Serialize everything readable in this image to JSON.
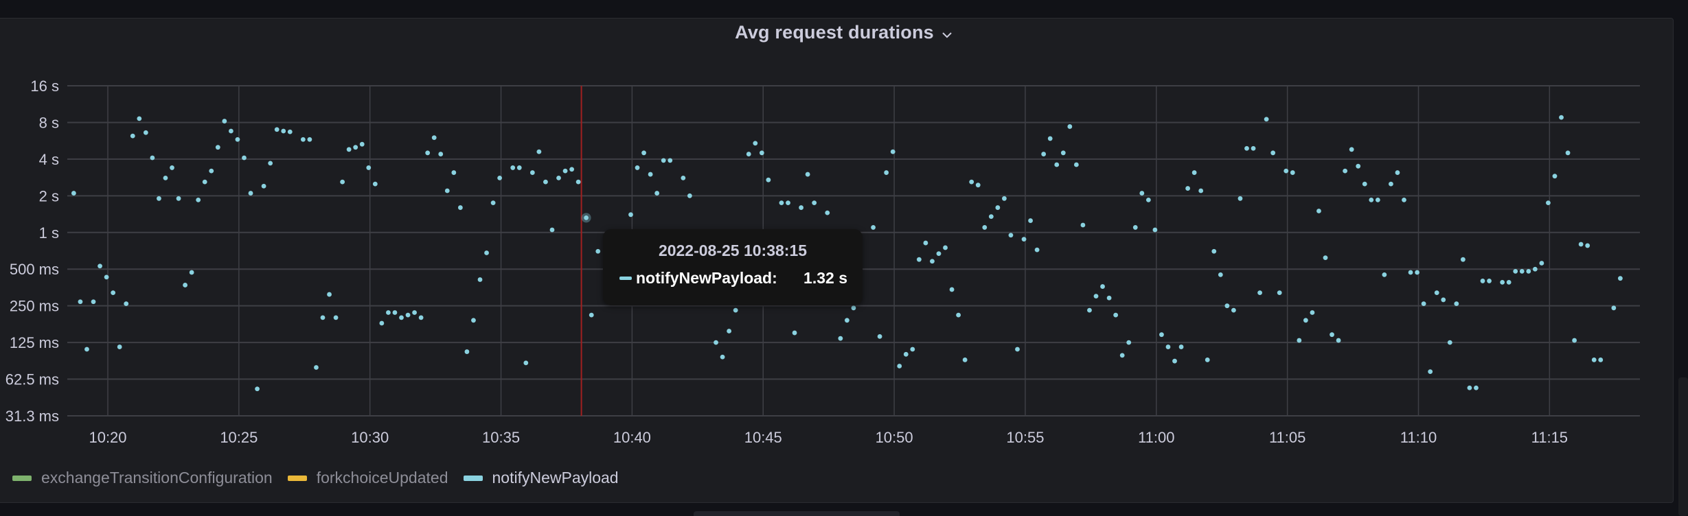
{
  "panel": {
    "title": "Avg request durations",
    "menu_icon": "chevron-down-icon"
  },
  "tooltip": {
    "time": "2022-08-25 10:38:15",
    "series_name": "notifyNewPayload:",
    "value": "1.32 s",
    "color": "#8ad2e0"
  },
  "legend": [
    {
      "label": "exchangeTransitionConfiguration",
      "color": "#7eb26d"
    },
    {
      "label": "forkchoiceUpdated",
      "color": "#eab839"
    },
    {
      "label": "notifyNewPayload",
      "color": "#8ad2e0"
    }
  ],
  "colors": {
    "background": "#111217",
    "panel": "#1c1d21",
    "grid": "#3e3f45",
    "point": "#8ad2e0",
    "cursor": "#a02020",
    "text": "#ccccdc"
  },
  "chart_data": {
    "type": "scatter",
    "title": "Avg request durations",
    "xlabel": "",
    "ylabel": "",
    "y_scale": "log2",
    "ylim_seconds": [
      0.03125,
      16
    ],
    "y_ticks": [
      "16 s",
      "8 s",
      "4 s",
      "2 s",
      "1 s",
      "500 ms",
      "250 ms",
      "125 ms",
      "62.5 ms",
      "31.3 ms"
    ],
    "x_ticks": [
      "10:20",
      "10:25",
      "10:30",
      "10:35",
      "10:40",
      "10:45",
      "10:50",
      "10:55",
      "11:00",
      "11:05",
      "11:10",
      "11:15"
    ],
    "x_range": [
      "10:18:27",
      "11:18:27"
    ],
    "grid": true,
    "legend_position": "bottom",
    "cursor_time": "10:38:15",
    "series": [
      {
        "name": "notifyNewPayload",
        "color": "#8ad2e0",
        "points_min_since_1020_and_seconds": [
          [
            -1.55,
            3.6
          ],
          [
            -1.3,
            2.1
          ],
          [
            -1.05,
            0.27
          ],
          [
            -0.8,
            0.11
          ],
          [
            -0.55,
            0.27
          ],
          [
            -0.3,
            0.53
          ],
          [
            -0.05,
            0.43
          ],
          [
            0.2,
            0.32
          ],
          [
            0.45,
            0.115
          ],
          [
            0.7,
            0.26
          ],
          [
            0.95,
            6.2
          ],
          [
            1.2,
            8.6
          ],
          [
            1.45,
            6.6
          ],
          [
            1.7,
            4.1
          ],
          [
            1.95,
            1.9
          ],
          [
            2.2,
            2.8
          ],
          [
            2.45,
            3.4
          ],
          [
            2.7,
            1.9
          ],
          [
            2.95,
            0.37
          ],
          [
            3.2,
            0.47
          ],
          [
            3.45,
            1.85
          ],
          [
            3.7,
            2.6
          ],
          [
            3.95,
            3.2
          ],
          [
            4.2,
            5.0
          ],
          [
            4.45,
            8.2
          ],
          [
            4.7,
            6.8
          ],
          [
            4.95,
            5.8
          ],
          [
            5.2,
            4.1
          ],
          [
            5.45,
            2.1
          ],
          [
            5.7,
            0.052
          ],
          [
            5.95,
            2.4
          ],
          [
            6.2,
            3.7
          ],
          [
            6.45,
            7.0
          ],
          [
            6.7,
            6.8
          ],
          [
            6.95,
            6.7
          ],
          [
            7.45,
            5.8
          ],
          [
            7.7,
            5.8
          ],
          [
            7.95,
            0.078
          ],
          [
            8.2,
            0.2
          ],
          [
            8.45,
            0.31
          ],
          [
            8.7,
            0.2
          ],
          [
            8.95,
            2.6
          ],
          [
            9.2,
            4.8
          ],
          [
            9.45,
            5.0
          ],
          [
            9.7,
            5.3
          ],
          [
            9.95,
            3.4
          ],
          [
            10.2,
            2.5
          ],
          [
            10.45,
            0.18
          ],
          [
            10.7,
            0.22
          ],
          [
            10.95,
            0.22
          ],
          [
            11.2,
            0.2
          ],
          [
            11.45,
            0.21
          ],
          [
            11.7,
            0.22
          ],
          [
            11.95,
            0.2
          ],
          [
            12.2,
            4.5
          ],
          [
            12.45,
            6.0
          ],
          [
            12.7,
            4.4
          ],
          [
            12.95,
            2.2
          ],
          [
            13.2,
            3.1
          ],
          [
            13.45,
            1.6
          ],
          [
            13.7,
            0.105
          ],
          [
            13.95,
            0.19
          ],
          [
            14.2,
            0.41
          ],
          [
            14.45,
            0.68
          ],
          [
            14.7,
            1.75
          ],
          [
            14.95,
            2.8
          ],
          [
            15.45,
            3.4
          ],
          [
            15.7,
            3.4
          ],
          [
            15.95,
            0.085
          ],
          [
            16.2,
            3.1
          ],
          [
            16.45,
            4.6
          ],
          [
            16.7,
            2.6
          ],
          [
            16.95,
            1.05
          ],
          [
            17.2,
            2.8
          ],
          [
            17.45,
            3.2
          ],
          [
            17.7,
            3.3
          ],
          [
            17.95,
            2.6
          ],
          [
            18.25,
            1.32
          ],
          [
            18.45,
            0.21
          ],
          [
            18.7,
            0.7
          ],
          [
            19.95,
            1.4
          ],
          [
            20.2,
            3.4
          ],
          [
            20.45,
            4.5
          ],
          [
            20.7,
            3.0
          ],
          [
            20.95,
            2.1
          ],
          [
            21.2,
            3.9
          ],
          [
            21.45,
            3.9
          ],
          [
            21.95,
            2.8
          ],
          [
            22.2,
            2.0
          ],
          [
            23.2,
            0.125
          ],
          [
            23.45,
            0.095
          ],
          [
            23.7,
            0.155
          ],
          [
            23.95,
            0.23
          ],
          [
            24.45,
            4.4
          ],
          [
            24.7,
            5.4
          ],
          [
            24.95,
            4.5
          ],
          [
            25.2,
            2.7
          ],
          [
            25.45,
            0.92
          ],
          [
            25.7,
            1.75
          ],
          [
            25.95,
            1.75
          ],
          [
            26.2,
            0.15
          ],
          [
            26.45,
            1.6
          ],
          [
            26.7,
            3.0
          ],
          [
            26.95,
            1.75
          ],
          [
            27.45,
            1.45
          ],
          [
            27.7,
            0.88
          ],
          [
            27.95,
            0.135
          ],
          [
            28.2,
            0.19
          ],
          [
            28.45,
            0.24
          ],
          [
            28.7,
            0.9
          ],
          [
            29.2,
            1.1
          ],
          [
            29.45,
            0.14
          ],
          [
            29.7,
            3.1
          ],
          [
            29.95,
            4.6
          ],
          [
            30.2,
            0.08
          ],
          [
            30.45,
            0.1
          ],
          [
            30.7,
            0.11
          ],
          [
            30.95,
            0.6
          ],
          [
            31.2,
            0.82
          ],
          [
            31.45,
            0.58
          ],
          [
            31.7,
            0.67
          ],
          [
            31.95,
            0.75
          ],
          [
            32.2,
            0.34
          ],
          [
            32.45,
            0.21
          ],
          [
            32.7,
            0.09
          ],
          [
            32.95,
            2.6
          ],
          [
            33.2,
            2.45
          ],
          [
            33.45,
            1.1
          ],
          [
            33.7,
            1.35
          ],
          [
            33.95,
            1.6
          ],
          [
            34.2,
            1.9
          ],
          [
            34.45,
            0.95
          ],
          [
            34.7,
            0.11
          ],
          [
            34.95,
            0.88
          ],
          [
            35.2,
            1.25
          ],
          [
            35.45,
            0.72
          ],
          [
            35.7,
            4.4
          ],
          [
            35.95,
            5.9
          ],
          [
            36.2,
            3.6
          ],
          [
            36.45,
            4.5
          ],
          [
            36.7,
            7.4
          ],
          [
            36.95,
            3.6
          ],
          [
            37.2,
            1.15
          ],
          [
            37.45,
            0.23
          ],
          [
            37.7,
            0.3
          ],
          [
            37.95,
            0.36
          ],
          [
            38.2,
            0.29
          ],
          [
            38.45,
            0.21
          ],
          [
            38.7,
            0.098
          ],
          [
            38.95,
            0.125
          ],
          [
            39.2,
            1.1
          ],
          [
            39.45,
            2.1
          ],
          [
            39.7,
            1.85
          ],
          [
            39.95,
            1.05
          ],
          [
            40.2,
            0.145
          ],
          [
            40.45,
            0.115
          ],
          [
            40.7,
            0.088
          ],
          [
            40.95,
            0.115
          ],
          [
            41.2,
            2.3
          ],
          [
            41.45,
            3.1
          ],
          [
            41.7,
            2.2
          ],
          [
            41.95,
            0.09
          ],
          [
            42.2,
            0.7
          ],
          [
            42.45,
            0.45
          ],
          [
            42.7,
            0.25
          ],
          [
            42.95,
            0.23
          ],
          [
            43.2,
            1.9
          ],
          [
            43.45,
            4.9
          ],
          [
            43.7,
            4.9
          ],
          [
            43.95,
            0.32
          ],
          [
            44.2,
            8.5
          ],
          [
            44.45,
            4.5
          ],
          [
            44.7,
            0.32
          ],
          [
            44.95,
            3.2
          ],
          [
            45.2,
            3.1
          ],
          [
            45.45,
            0.13
          ],
          [
            45.7,
            0.19
          ],
          [
            45.95,
            0.22
          ],
          [
            46.2,
            1.5
          ],
          [
            46.45,
            0.62
          ],
          [
            46.7,
            0.145
          ],
          [
            46.95,
            0.13
          ],
          [
            47.2,
            3.2
          ],
          [
            47.45,
            4.8
          ],
          [
            47.7,
            3.5
          ],
          [
            47.95,
            2.5
          ],
          [
            48.2,
            1.85
          ],
          [
            48.45,
            1.85
          ],
          [
            48.7,
            0.45
          ],
          [
            48.95,
            2.5
          ],
          [
            49.2,
            3.1
          ],
          [
            49.45,
            1.85
          ],
          [
            49.7,
            0.47
          ],
          [
            49.95,
            0.47
          ],
          [
            50.2,
            0.26
          ],
          [
            50.45,
            0.072
          ],
          [
            50.7,
            0.32
          ],
          [
            50.95,
            0.28
          ],
          [
            51.2,
            0.125
          ],
          [
            51.45,
            0.26
          ],
          [
            51.7,
            0.6
          ],
          [
            51.95,
            0.053
          ],
          [
            52.2,
            0.053
          ],
          [
            52.45,
            0.4
          ],
          [
            52.7,
            0.4
          ],
          [
            53.2,
            0.39
          ],
          [
            53.45,
            0.39
          ],
          [
            53.7,
            0.48
          ],
          [
            53.95,
            0.48
          ],
          [
            54.2,
            0.48
          ],
          [
            54.45,
            0.5
          ],
          [
            54.7,
            0.56
          ],
          [
            54.95,
            1.75
          ],
          [
            55.2,
            2.9
          ],
          [
            55.45,
            8.8
          ],
          [
            55.7,
            4.5
          ],
          [
            55.95,
            0.13
          ],
          [
            56.2,
            0.8
          ],
          [
            56.45,
            0.78
          ],
          [
            56.7,
            0.09
          ],
          [
            56.95,
            0.09
          ],
          [
            57.45,
            0.24
          ],
          [
            57.7,
            0.42
          ]
        ]
      },
      {
        "name": "exchangeTransitionConfiguration",
        "color": "#7eb26d",
        "points_min_since_1020_and_seconds": []
      },
      {
        "name": "forkchoiceUpdated",
        "color": "#eab839",
        "points_min_since_1020_and_seconds": []
      }
    ]
  }
}
